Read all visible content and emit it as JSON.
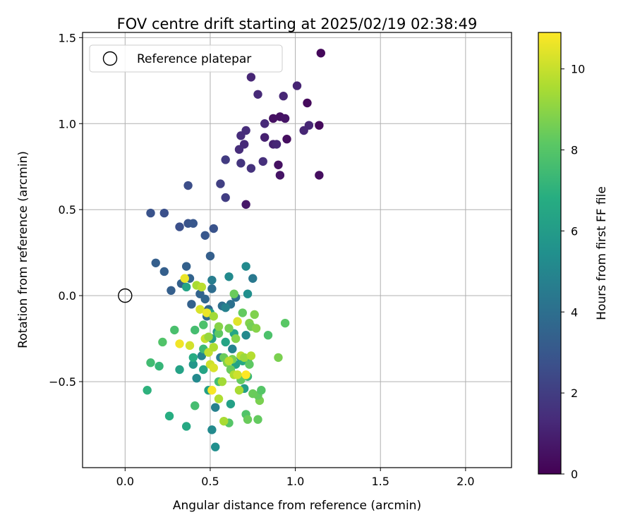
{
  "chart_data": {
    "type": "scatter",
    "title": "FOV centre drift starting at 2025/02/19 02:38:49",
    "xlabel": "Angular distance from reference (arcmin)",
    "ylabel": "Rotation from reference (arcmin)",
    "xlim": [
      -0.25,
      2.27
    ],
    "ylim": [
      -1.0,
      1.53
    ],
    "x_ticks": [
      0.0,
      0.5,
      1.0,
      1.5,
      2.0
    ],
    "x_tick_labels": [
      "0.0",
      "0.5",
      "1.0",
      "1.5",
      "2.0"
    ],
    "y_ticks": [
      -0.5,
      0.0,
      0.5,
      1.0,
      1.5
    ],
    "y_tick_labels": [
      "−0.5",
      "0.0",
      "0.5",
      "1.0",
      "1.5"
    ],
    "grid": true,
    "legend": {
      "placement": "upper-left",
      "entries": [
        "Reference platepar"
      ]
    },
    "reference_point": {
      "x": 0.0,
      "y": 0.0
    },
    "colorbar": {
      "label": "Hours from first FF file",
      "range": [
        0,
        10.9
      ],
      "ticks": [
        0,
        2,
        4,
        6,
        8,
        10
      ],
      "tick_labels": [
        "0",
        "2",
        "4",
        "6",
        "8",
        "10"
      ],
      "colormap": "viridis"
    },
    "points": [
      [
        1.15,
        1.41,
        0.2
      ],
      [
        1.14,
        0.99,
        0.3
      ],
      [
        1.14,
        0.7,
        0.4
      ],
      [
        1.07,
        1.12,
        0.3
      ],
      [
        0.91,
        1.04,
        0.5
      ],
      [
        0.87,
        1.03,
        0.5
      ],
      [
        0.94,
        1.03,
        0.6
      ],
      [
        0.95,
        0.91,
        0.4
      ],
      [
        0.9,
        0.76,
        0.5
      ],
      [
        0.91,
        0.7,
        0.6
      ],
      [
        0.71,
        0.53,
        0.7
      ],
      [
        1.01,
        1.22,
        1.1
      ],
      [
        1.08,
        0.99,
        1.2
      ],
      [
        1.05,
        0.96,
        1.2
      ],
      [
        0.93,
        1.16,
        1.2
      ],
      [
        0.87,
        0.88,
        1.0
      ],
      [
        0.89,
        0.88,
        1.2
      ],
      [
        0.82,
        0.92,
        1.0
      ],
      [
        0.82,
        1.0,
        1.3
      ],
      [
        0.74,
        1.27,
        1.2
      ],
      [
        0.78,
        1.17,
        1.3
      ],
      [
        0.71,
        0.96,
        1.4
      ],
      [
        0.7,
        0.88,
        1.3
      ],
      [
        0.68,
        0.93,
        1.4
      ],
      [
        0.67,
        0.85,
        1.4
      ],
      [
        0.74,
        0.74,
        1.6
      ],
      [
        0.68,
        0.77,
        1.7
      ],
      [
        0.81,
        0.78,
        1.5
      ],
      [
        0.59,
        0.79,
        1.9
      ],
      [
        0.59,
        0.57,
        2.0
      ],
      [
        0.56,
        0.65,
        2.1
      ],
      [
        0.37,
        0.64,
        2.6
      ],
      [
        0.15,
        0.48,
        2.8
      ],
      [
        0.23,
        0.48,
        2.7
      ],
      [
        0.32,
        0.4,
        2.7
      ],
      [
        0.37,
        0.42,
        2.8
      ],
      [
        0.4,
        0.42,
        3.0
      ],
      [
        0.52,
        0.39,
        2.8
      ],
      [
        0.47,
        0.35,
        3.0
      ],
      [
        0.5,
        0.23,
        3.3
      ],
      [
        0.18,
        0.19,
        3.3
      ],
      [
        0.23,
        0.14,
        3.3
      ],
      [
        0.36,
        0.17,
        3.4
      ],
      [
        0.27,
        0.03,
        3.3
      ],
      [
        0.33,
        0.07,
        3.4
      ],
      [
        0.38,
        0.1,
        3.5
      ],
      [
        0.39,
        -0.05,
        3.4
      ],
      [
        0.44,
        0.01,
        3.5
      ],
      [
        0.47,
        -0.02,
        3.6
      ],
      [
        0.49,
        -0.08,
        3.7
      ],
      [
        0.48,
        -0.12,
        3.8
      ],
      [
        0.51,
        0.04,
        3.9
      ],
      [
        0.51,
        0.09,
        4.6
      ],
      [
        0.57,
        -0.06,
        4.0
      ],
      [
        0.62,
        -0.05,
        4.1
      ],
      [
        0.65,
        -0.01,
        4.0
      ],
      [
        0.59,
        -0.07,
        4.8
      ],
      [
        0.71,
        0.17,
        5.2
      ],
      [
        0.75,
        0.1,
        4.4
      ],
      [
        0.72,
        0.01,
        5.4
      ],
      [
        0.61,
        0.11,
        5.2
      ],
      [
        0.53,
        -0.65,
        4.8
      ],
      [
        0.51,
        -0.78,
        5.2
      ],
      [
        0.53,
        -0.88,
        5.4
      ],
      [
        0.42,
        -0.48,
        5.2
      ],
      [
        0.45,
        -0.35,
        4.9
      ],
      [
        0.56,
        -0.36,
        4.6
      ],
      [
        0.63,
        -0.31,
        4.9
      ],
      [
        0.68,
        -0.36,
        5.1
      ],
      [
        0.71,
        -0.23,
        5.2
      ],
      [
        0.62,
        -0.63,
        6.2
      ],
      [
        0.36,
        -0.76,
        6.6
      ],
      [
        0.32,
        -0.43,
        6.3
      ],
      [
        0.26,
        -0.7,
        6.8
      ],
      [
        0.46,
        -0.43,
        6.4
      ],
      [
        0.49,
        -0.55,
        6.2
      ],
      [
        0.4,
        -0.4,
        5.8
      ],
      [
        0.4,
        -0.36,
        6.7
      ],
      [
        0.51,
        -0.25,
        6.0
      ],
      [
        0.54,
        -0.21,
        5.8
      ],
      [
        0.59,
        -0.27,
        6.4
      ],
      [
        0.65,
        -0.4,
        6.3
      ],
      [
        0.7,
        -0.54,
        6.1
      ],
      [
        0.69,
        -0.38,
        6.6
      ],
      [
        0.72,
        -0.38,
        6.8
      ],
      [
        0.64,
        -0.22,
        6.5
      ],
      [
        0.5,
        -0.1,
        6.1
      ],
      [
        0.36,
        0.05,
        6.4
      ],
      [
        0.13,
        -0.55,
        7.0
      ],
      [
        0.15,
        -0.39,
        7.5
      ],
      [
        0.2,
        -0.41,
        7.2
      ],
      [
        0.22,
        -0.27,
        7.9
      ],
      [
        0.29,
        -0.2,
        7.7
      ],
      [
        0.41,
        -0.64,
        7.6
      ],
      [
        0.41,
        -0.2,
        7.6
      ],
      [
        0.46,
        -0.17,
        7.8
      ],
      [
        0.46,
        -0.31,
        7.4
      ],
      [
        0.55,
        -0.5,
        7.6
      ],
      [
        0.61,
        -0.74,
        8.0
      ],
      [
        0.71,
        -0.69,
        7.9
      ],
      [
        0.72,
        -0.72,
        8.4
      ],
      [
        0.78,
        -0.72,
        8.3
      ],
      [
        0.79,
        -0.61,
        8.7
      ],
      [
        0.78,
        -0.58,
        8.3
      ],
      [
        0.8,
        -0.55,
        8.0
      ],
      [
        0.72,
        -0.47,
        7.3
      ],
      [
        0.75,
        -0.57,
        8.4
      ],
      [
        0.73,
        -0.4,
        8.2
      ],
      [
        0.68,
        -0.49,
        8.3
      ],
      [
        0.58,
        -0.36,
        8.4
      ],
      [
        0.6,
        -0.39,
        8.8
      ],
      [
        0.65,
        -0.25,
        8.9
      ],
      [
        0.63,
        -0.37,
        8.7
      ],
      [
        0.62,
        -0.43,
        8.4
      ],
      [
        0.55,
        -0.22,
        8.2
      ],
      [
        0.61,
        -0.19,
        8.6
      ],
      [
        0.69,
        -0.1,
        8.3
      ],
      [
        0.73,
        -0.16,
        8.8
      ],
      [
        0.74,
        -0.18,
        8.6
      ],
      [
        0.76,
        -0.11,
        8.8
      ],
      [
        0.77,
        -0.19,
        8.9
      ],
      [
        0.84,
        -0.23,
        7.8
      ],
      [
        0.94,
        -0.16,
        8.1
      ],
      [
        0.9,
        -0.36,
        8.7
      ],
      [
        0.55,
        -0.18,
        8.9
      ],
      [
        0.64,
        0.01,
        8.4
      ],
      [
        0.35,
        0.1,
        10.6
      ],
      [
        0.42,
        0.06,
        9.5
      ],
      [
        0.44,
        -0.08,
        10.3
      ],
      [
        0.47,
        -0.25,
        10.0
      ],
      [
        0.49,
        -0.33,
        9.9
      ],
      [
        0.5,
        -0.4,
        10.1
      ],
      [
        0.52,
        -0.42,
        10.3
      ],
      [
        0.51,
        -0.55,
        10.8
      ],
      [
        0.55,
        -0.6,
        9.6
      ],
      [
        0.57,
        -0.5,
        9.4
      ],
      [
        0.58,
        -0.73,
        9.5
      ],
      [
        0.61,
        -0.38,
        9.8
      ],
      [
        0.64,
        -0.46,
        9.6
      ],
      [
        0.66,
        -0.46,
        10.1
      ],
      [
        0.67,
        -0.55,
        9.5
      ],
      [
        0.68,
        -0.35,
        9.8
      ],
      [
        0.66,
        -0.15,
        10.4
      ],
      [
        0.7,
        -0.36,
        9.3
      ],
      [
        0.71,
        -0.46,
        10.9
      ],
      [
        0.74,
        -0.35,
        9.7
      ],
      [
        0.38,
        -0.29,
        10.2
      ],
      [
        0.32,
        -0.28,
        10.7
      ],
      [
        0.49,
        -0.24,
        9.2
      ],
      [
        0.52,
        -0.3,
        9.6
      ],
      [
        0.45,
        0.05,
        9.8
      ],
      [
        0.48,
        -0.1,
        10.6
      ],
      [
        0.52,
        -0.12,
        9.4
      ]
    ]
  }
}
